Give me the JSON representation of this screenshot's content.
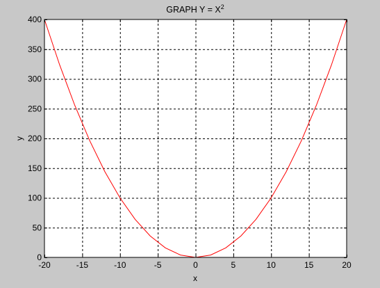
{
  "chart_data": {
    "type": "line",
    "title": "GRAPH Y = X",
    "title_superscript": "2",
    "xlabel": "x",
    "ylabel": "y",
    "xlim": [
      -20,
      20
    ],
    "ylim": [
      0,
      400
    ],
    "xticks": [
      -20,
      -15,
      -10,
      -5,
      0,
      5,
      10,
      15,
      20
    ],
    "yticks": [
      0,
      50,
      100,
      150,
      200,
      250,
      300,
      350,
      400
    ],
    "grid": true,
    "series": [
      {
        "function": "y = x^2",
        "color": "#ff0000",
        "x": [
          -20,
          -18,
          -16,
          -14,
          -12,
          -10,
          -8,
          -6,
          -4,
          -2,
          0,
          2,
          4,
          6,
          8,
          10,
          12,
          14,
          16,
          18,
          20
        ],
        "y": [
          400,
          324,
          256,
          196,
          144,
          100,
          64,
          36,
          16,
          4,
          0,
          4,
          16,
          36,
          64,
          100,
          144,
          196,
          256,
          324,
          400
        ]
      }
    ]
  },
  "colors": {
    "background": "#c8c8c8",
    "plot_background": "#ffffff",
    "curve": "#ff0000"
  }
}
